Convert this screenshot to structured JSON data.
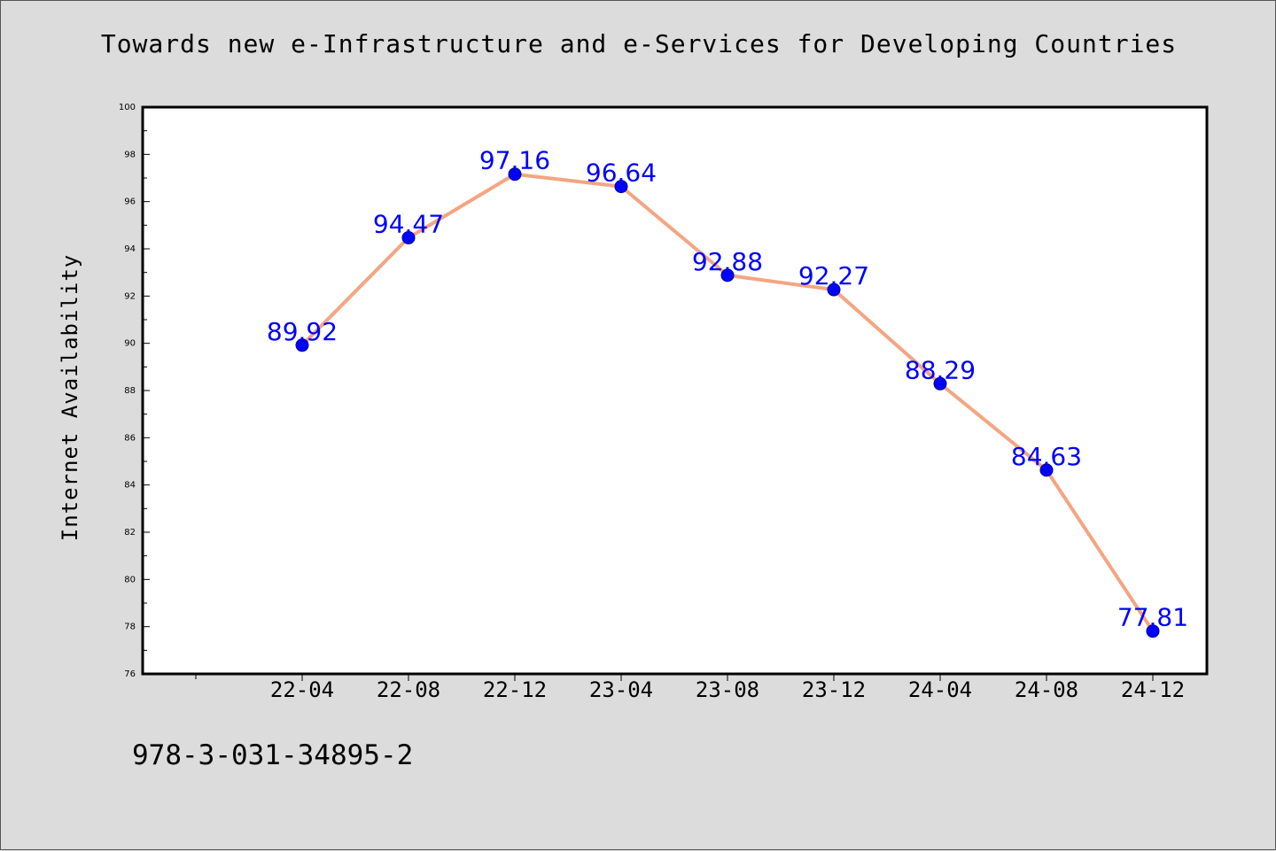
{
  "chart_data": {
    "type": "line",
    "title": "Towards new e-Infrastructure and e-Services for Developing Countries",
    "xlabel": "",
    "ylabel": "Internet Availability",
    "categories": [
      "22-04",
      "22-08",
      "22-12",
      "23-04",
      "23-08",
      "23-12",
      "24-04",
      "24-08",
      "24-12"
    ],
    "series": [
      {
        "values": [
          89.92,
          94.47,
          97.16,
          96.64,
          92.88,
          92.27,
          88.29,
          84.63,
          77.81
        ]
      }
    ],
    "data_labels": [
      "89.92",
      "94.47",
      "97.16",
      "96.64",
      "92.88",
      "92.27",
      "88.29",
      "84.63",
      "77.81"
    ],
    "ylim": [
      76,
      100
    ],
    "yticks": [
      "76",
      "78",
      "80",
      "82",
      "84",
      "86",
      "88",
      "90",
      "92",
      "94",
      "96",
      "98",
      "100"
    ],
    "grid": false,
    "legend": "none",
    "colors": {
      "line": "#f4a582",
      "marker": "#0000ff",
      "label": "#0000ff",
      "plot_bg": "#ffffff",
      "page_bg": "#dcdcdc"
    }
  },
  "footer": {
    "code": "978-3-031-34895-2"
  }
}
